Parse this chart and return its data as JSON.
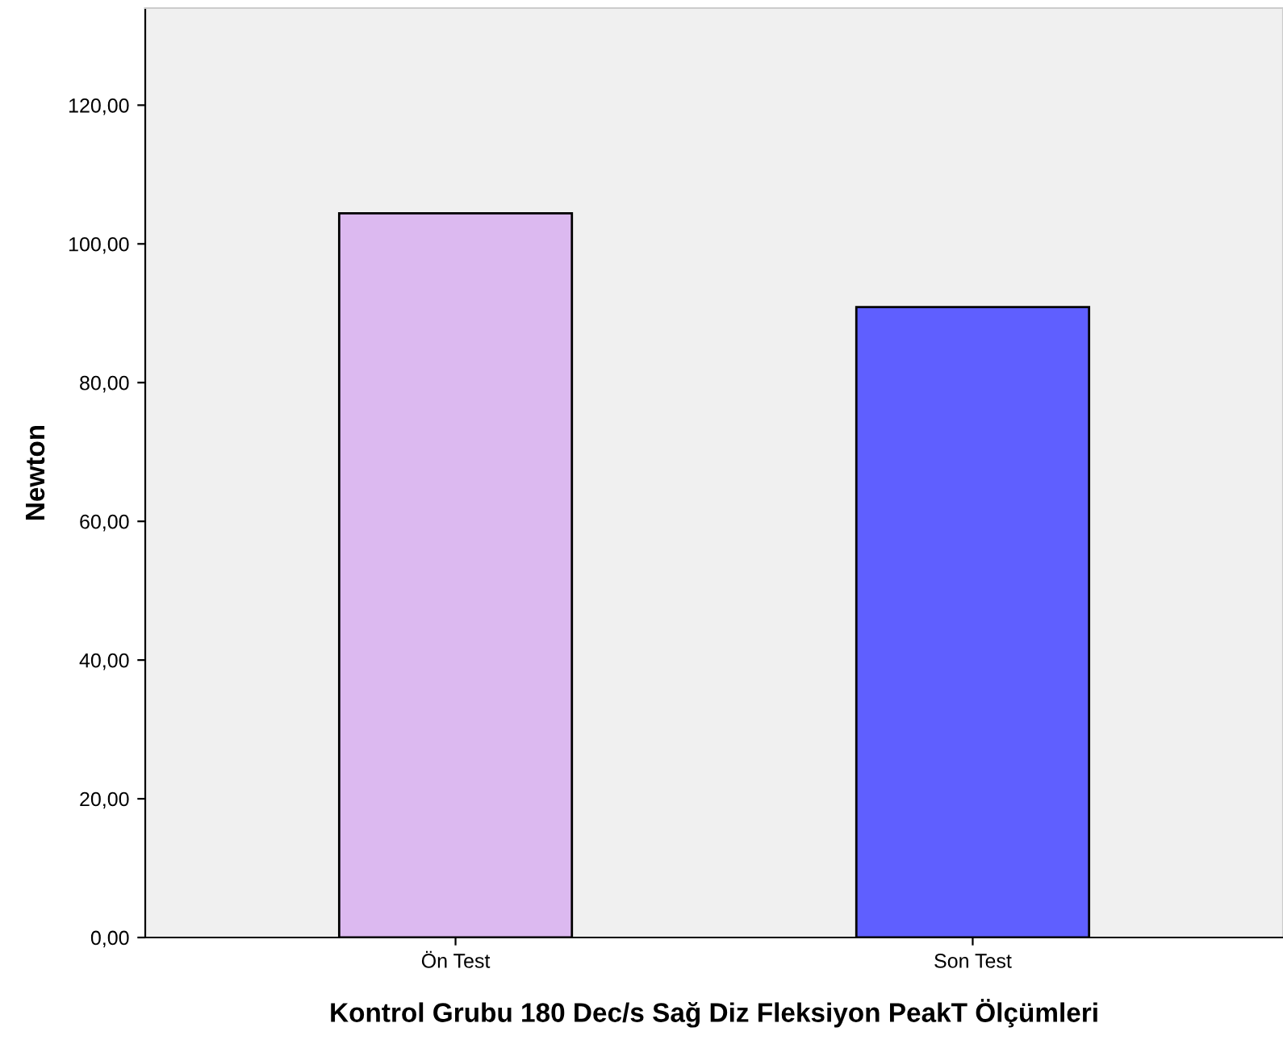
{
  "chart_data": {
    "type": "bar",
    "xlabel": "Kontrol Grubu 180 Dec/s Sağ Diz Fleksiyon PeakT Ölçümleri",
    "ylabel": "Newton",
    "categories": [
      "Ön Test",
      "Son Test"
    ],
    "values": [
      104.4,
      90.9
    ],
    "colors": [
      "#dcb9f0",
      "#5f5fff"
    ],
    "ylim": [
      0,
      134
    ],
    "yticks": [
      {
        "value": 0,
        "label": "0,00"
      },
      {
        "value": 20,
        "label": "20,00"
      },
      {
        "value": 40,
        "label": "40,00"
      },
      {
        "value": 60,
        "label": "60,00"
      },
      {
        "value": 80,
        "label": "80,00"
      },
      {
        "value": 100,
        "label": "100,00"
      },
      {
        "value": 120,
        "label": "120,00"
      }
    ],
    "grid": false
  }
}
